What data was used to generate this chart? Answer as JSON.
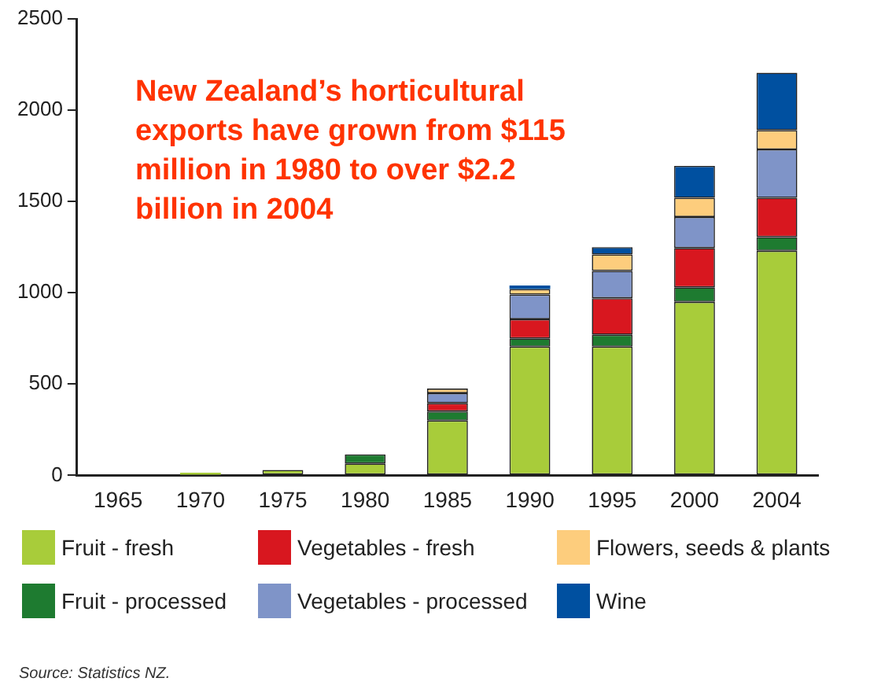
{
  "chart_data": {
    "type": "bar",
    "stacked": true,
    "categories": [
      "1965",
      "1970",
      "1975",
      "1980",
      "1985",
      "1990",
      "1995",
      "2000",
      "2004"
    ],
    "series": [
      {
        "name": "Fruit - fresh",
        "color": "#a8cc3a",
        "values": [
          null,
          15,
          30,
          65,
          300,
          705,
          705,
          950,
          1230
        ]
      },
      {
        "name": "Fruit - processed",
        "color": "#1e7b30",
        "values": [
          null,
          null,
          null,
          50,
          50,
          45,
          65,
          80,
          75
        ]
      },
      {
        "name": "Vegetables - fresh",
        "color": "#d8171f",
        "values": [
          null,
          null,
          null,
          null,
          45,
          105,
          200,
          215,
          215
        ]
      },
      {
        "name": "Vegetables - processed",
        "color": "#7f94c8",
        "values": [
          null,
          null,
          null,
          null,
          55,
          135,
          150,
          170,
          265
        ]
      },
      {
        "name": "Flowers, seeds & plants",
        "color": "#fdcd7d",
        "values": [
          null,
          null,
          null,
          null,
          25,
          30,
          90,
          105,
          105
        ]
      },
      {
        "name": "Wine",
        "color": "#0050a0",
        "values": [
          null,
          null,
          null,
          null,
          null,
          20,
          40,
          175,
          315
        ]
      }
    ],
    "ylim": [
      0,
      2500
    ],
    "yticks": [
      0,
      500,
      1000,
      1500,
      2000,
      2500
    ],
    "grid": false,
    "legend": "bottom",
    "annotations": [
      "New Zealand’s horticultural exports have grown from $115 million in 1980 to over $2.2 billion in 2004",
      "Source: Statistics NZ."
    ]
  }
}
